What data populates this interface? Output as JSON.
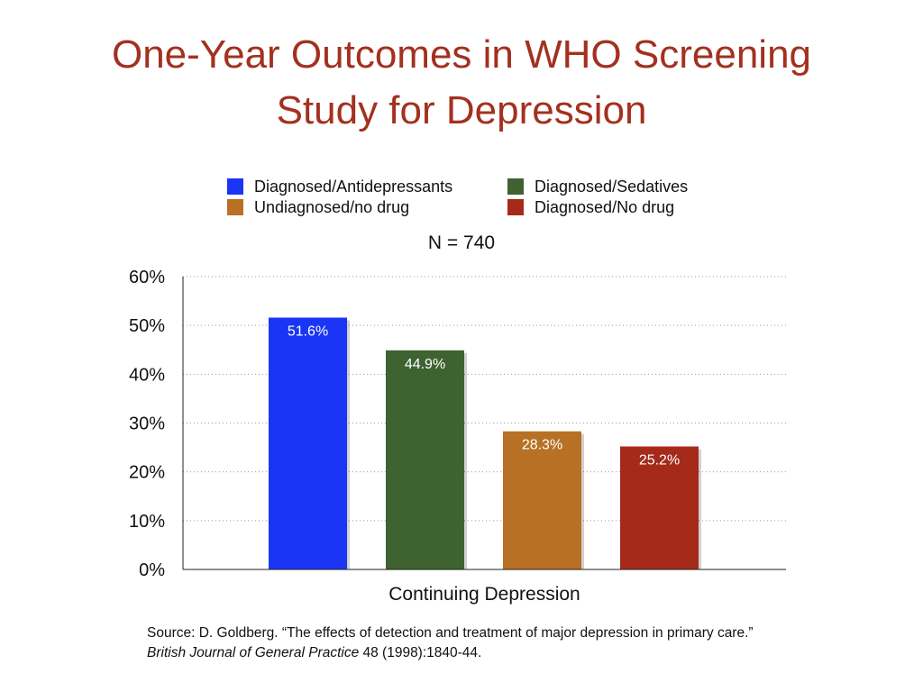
{
  "title": {
    "line1": "One-Year Outcomes in WHO Screening",
    "line2": "Study for Depression"
  },
  "n_label": "N =  740",
  "source": {
    "line1": "Source: D. Goldberg. “The effects of detection and treatment of major depression in primary care.”",
    "journal": "British Journal of General Practice",
    "details": " 48 (1998):1840-44."
  },
  "chart_data": {
    "type": "bar",
    "categories": [
      "Continuing Depression"
    ],
    "xlabel": "Continuing Depression",
    "ylabel": "",
    "ylim": [
      0,
      60
    ],
    "yticks": [
      0,
      10,
      20,
      30,
      40,
      50,
      60
    ],
    "ytick_labels": [
      "0%",
      "10%",
      "20%",
      "30%",
      "40%",
      "50%",
      "60%"
    ],
    "grid": true,
    "legend_position": "top",
    "series": [
      {
        "name": "Diagnosed/Antidepressants",
        "values": [
          51.6
        ],
        "label": "51.6%",
        "color": "#1a35f5"
      },
      {
        "name": "Diagnosed/Sedatives",
        "values": [
          44.9
        ],
        "label": "44.9%",
        "color": "#3e6331"
      },
      {
        "name": "Undiagnosed/no drug",
        "values": [
          28.3
        ],
        "label": "28.3%",
        "color": "#b87124"
      },
      {
        "name": "Diagnosed/No drug",
        "values": [
          25.2
        ],
        "label": "25.2%",
        "color": "#a52a1a"
      }
    ]
  }
}
